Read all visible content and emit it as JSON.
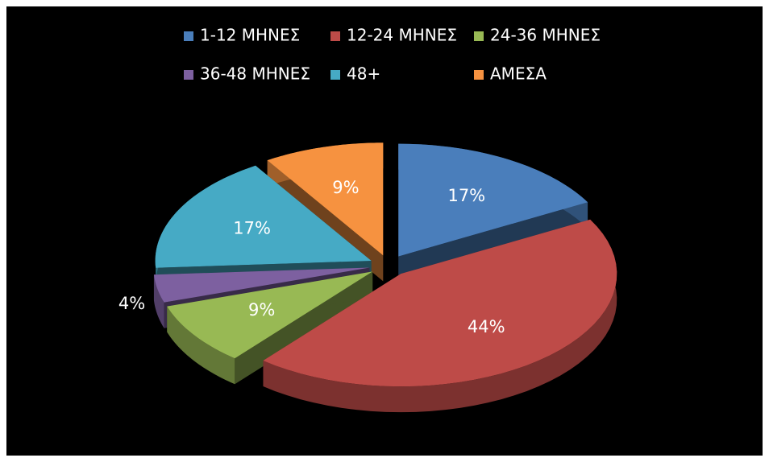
{
  "chart_data": {
    "type": "pie",
    "categories": [
      "1-12 ΜΗΝΕΣ",
      "12-24 ΜΗΝΕΣ",
      "24-36 ΜΗΝΕΣ",
      "36-48 ΜΗΝΕΣ",
      "48+",
      "ΑΜΕΣΑ"
    ],
    "values": [
      17,
      44,
      9,
      4,
      17,
      9
    ],
    "value_labels": [
      "17%",
      "44%",
      "9%",
      "4%",
      "17%",
      "9%"
    ],
    "colors": [
      "#4a7ebb",
      "#be4b48",
      "#98b954",
      "#7d60a0",
      "#46aac5",
      "#f69240"
    ],
    "legend": "top"
  }
}
